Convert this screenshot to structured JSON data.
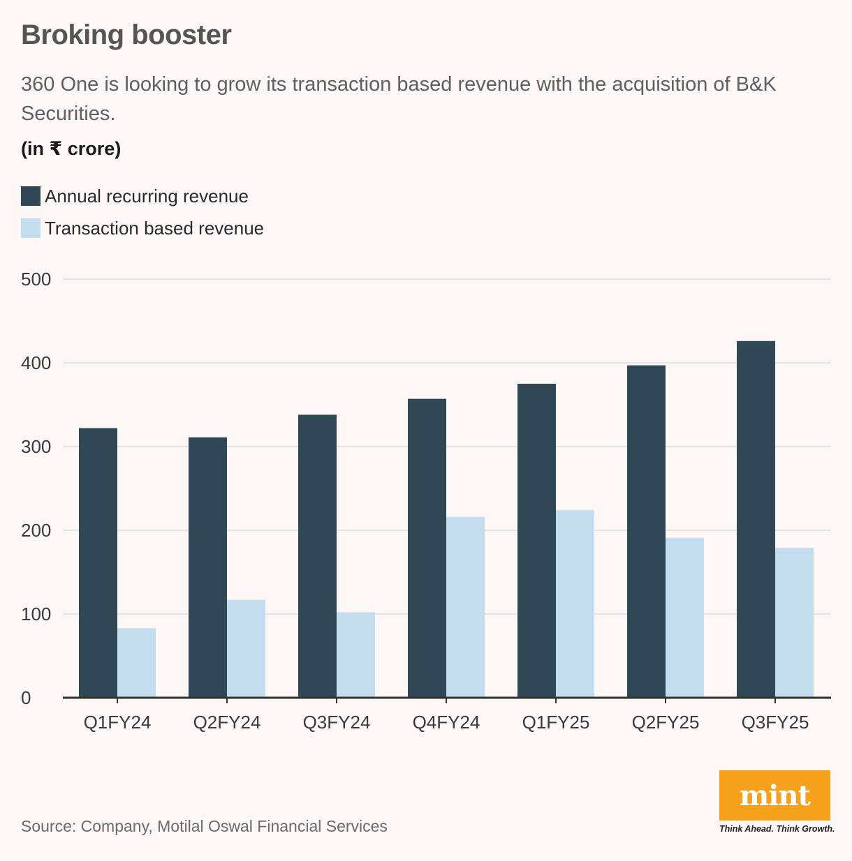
{
  "title": "Broking booster",
  "subtitle": "360 One is looking to grow its transaction based revenue with the acquisition of B&K Securities.",
  "unit_label": "(in ₹ crore)",
  "source": "Source: Company, Motilal Oswal Financial Services",
  "logo": {
    "text": "mint",
    "tagline": "Think Ahead. Think Growth."
  },
  "colors": {
    "arr": "#304856",
    "tbr": "#c3ddee",
    "background": "#fdf7f5",
    "logo": "#f6a11c"
  },
  "legend": [
    {
      "label": "Annual recurring revenue",
      "color": "#304856"
    },
    {
      "label": "Transaction based revenue",
      "color": "#c3ddee"
    }
  ],
  "chart_data": {
    "type": "bar",
    "title": "Broking booster",
    "xlabel": "",
    "ylabel": "(in ₹ crore)",
    "categories": [
      "Q1FY24",
      "Q2FY24",
      "Q3FY24",
      "Q4FY24",
      "Q1FY25",
      "Q2FY25",
      "Q3FY25"
    ],
    "series": [
      {
        "name": "Annual recurring revenue",
        "values": [
          322,
          311,
          338,
          357,
          375,
          397,
          426
        ]
      },
      {
        "name": "Transaction based revenue",
        "values": [
          83,
          117,
          102,
          216,
          224,
          191,
          179
        ]
      }
    ],
    "ylim": [
      0,
      500
    ],
    "yticks": [
      0,
      100,
      200,
      300,
      400,
      500
    ],
    "grid": true,
    "legend_position": "top-left"
  }
}
